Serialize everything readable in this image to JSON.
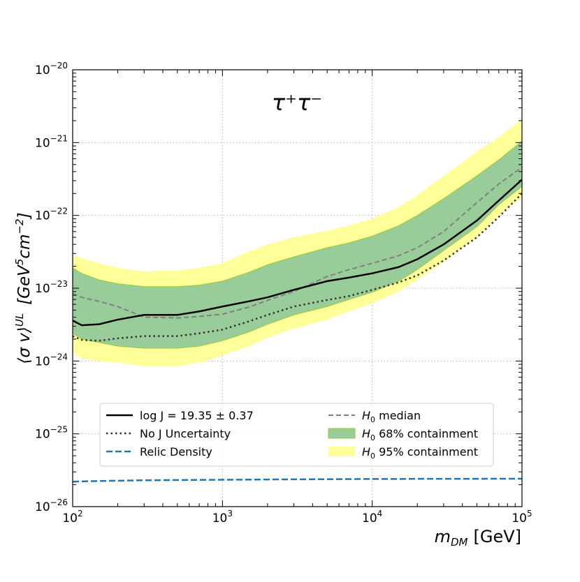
{
  "chart_data": {
    "type": "line",
    "title": "",
    "annotation": "τ⁺τ⁻",
    "xlabel": {
      "symbol": "m",
      "subscript": "DM",
      "unit": "[GeV]"
    },
    "ylabel": {
      "bracket_open": "⟨σ v⟩",
      "superscript": "UL",
      "unit_prefix": "[GeV",
      "unit_sup1": "5",
      "unit_mid": "cm",
      "unit_sup2": "−2",
      "unit_suffix": "]"
    },
    "x_scale": "log",
    "y_scale": "log",
    "xlim": [
      100,
      100000
    ],
    "ylim": [
      1e-26,
      1e-20
    ],
    "grid": true,
    "legend_position": "lower-center",
    "x_ticks": [
      {
        "exp": 2,
        "base": "10",
        "sup": "2"
      },
      {
        "exp": 3,
        "base": "10",
        "sup": "3"
      },
      {
        "exp": 4,
        "base": "10",
        "sup": "4"
      },
      {
        "exp": 5,
        "base": "10",
        "sup": "5"
      }
    ],
    "y_ticks": [
      {
        "exp": -26,
        "base": "10",
        "sup": "−26"
      },
      {
        "exp": -25,
        "base": "10",
        "sup": "−25"
      },
      {
        "exp": -24,
        "base": "10",
        "sup": "−24"
      },
      {
        "exp": -23,
        "base": "10",
        "sup": "−23"
      },
      {
        "exp": -22,
        "base": "10",
        "sup": "−22"
      },
      {
        "exp": -21,
        "base": "10",
        "sup": "−21"
      },
      {
        "exp": -20,
        "base": "10",
        "sup": "−20"
      }
    ],
    "x": [
      100,
      115,
      150,
      200,
      300,
      500,
      700,
      1000,
      1500,
      2000,
      3000,
      5000,
      7000,
      10000,
      15000,
      20000,
      30000,
      50000,
      70000,
      100000
    ],
    "bands": [
      {
        "name": "95% containment",
        "color": "#ffff99",
        "lower": [
          1.3e-24,
          1.1e-24,
          1e-24,
          9.5e-25,
          8.5e-25,
          8.5e-25,
          9.5e-25,
          1.2e-24,
          1.6e-24,
          2.1e-24,
          2.8e-24,
          3.7e-24,
          4.8e-24,
          6.2e-24,
          9e-24,
          1.3e-23,
          2.3e-23,
          5e-23,
          1e-22,
          1.8e-22
        ],
        "upper": [
          2.8e-23,
          2.6e-23,
          2.2e-23,
          1.9e-23,
          1.7e-23,
          1.75e-23,
          1.9e-23,
          2.2e-23,
          3.2e-23,
          4e-23,
          5e-23,
          6.2e-23,
          7.3e-23,
          9e-23,
          1.3e-22,
          1.9e-22,
          3.5e-22,
          7.5e-22,
          1.2e-21,
          2.1e-21
        ]
      },
      {
        "name": "68% containment",
        "color": "#98cc98",
        "lower": [
          2.4e-24,
          2e-24,
          1.8e-24,
          1.6e-24,
          1.5e-24,
          1.5e-24,
          1.6e-24,
          1.9e-24,
          2.5e-24,
          3.2e-24,
          4.3e-24,
          5.6e-24,
          7e-24,
          8.8e-24,
          1.25e-23,
          1.8e-23,
          3.3e-23,
          7e-23,
          1.4e-22,
          2.5e-22
        ],
        "upper": [
          1.9e-23,
          1.6e-23,
          1.3e-23,
          1.15e-23,
          1.05e-23,
          1.05e-23,
          1.1e-23,
          1.25e-23,
          1.65e-23,
          2.1e-23,
          2.7e-23,
          3.6e-23,
          4.2e-23,
          5.2e-23,
          7.2e-23,
          1e-22,
          1.7e-22,
          3.5e-22,
          5.8e-22,
          1.05e-21
        ]
      }
    ],
    "series": [
      {
        "name": "H0 median",
        "style": "dashed",
        "color": "#808080",
        "y": [
          8.5e-24,
          7.5e-24,
          6.6e-24,
          5.6e-24,
          4e-24,
          3.9e-24,
          4.1e-24,
          4.4e-24,
          5.5e-24,
          6.8e-24,
          9e-24,
          1.45e-23,
          1.8e-23,
          2.2e-23,
          2.8e-23,
          3.6e-23,
          6e-23,
          1.5e-22,
          2.7e-22,
          4.6e-22
        ]
      },
      {
        "name": "log J = 19.35 ± 0.37",
        "style": "solid",
        "color": "#000000",
        "y": [
          3.6e-24,
          3.1e-24,
          3.2e-24,
          3.7e-24,
          4.3e-24,
          4.3e-24,
          4.8e-24,
          5.6e-24,
          6.6e-24,
          7.5e-24,
          9.5e-24,
          1.25e-23,
          1.4e-23,
          1.6e-23,
          1.95e-23,
          2.5e-23,
          4e-23,
          8.5e-23,
          1.6e-22,
          3.1e-22
        ]
      },
      {
        "name": "No J Uncertainty",
        "style": "dotted",
        "color": "#333333",
        "y": [
          2.2e-24,
          1.95e-24,
          1.9e-24,
          2.05e-24,
          2.2e-24,
          2.2e-24,
          2.4e-24,
          2.7e-24,
          3.5e-24,
          4.3e-24,
          5.6e-24,
          6.9e-24,
          7.8e-24,
          9.5e-24,
          1.2e-23,
          1.5e-23,
          2.4e-23,
          5e-23,
          9.5e-23,
          2e-22
        ]
      },
      {
        "name": "Relic Density",
        "style": "dashed",
        "color": "#1f77b4",
        "y": [
          2.2e-26,
          2.22e-26,
          2.25e-26,
          2.27e-26,
          2.3e-26,
          2.32e-26,
          2.33e-26,
          2.34e-26,
          2.35e-26,
          2.36e-26,
          2.37e-26,
          2.38e-26,
          2.39e-26,
          2.4e-26,
          2.4e-26,
          2.41e-26,
          2.41e-26,
          2.41e-26,
          2.42e-26,
          2.42e-26
        ]
      }
    ],
    "legend": {
      "left": [
        {
          "key": "solid",
          "label": "log J = 19.35 ± 0.37"
        },
        {
          "key": "dotted",
          "label": "No J Uncertainty"
        },
        {
          "key": "relic",
          "label": "Relic Density"
        }
      ],
      "right": [
        {
          "key": "median",
          "sym": "H",
          "sub": "0",
          "label": " median"
        },
        {
          "key": "band68",
          "sym": "H",
          "sub": "0",
          "label": " 68% containment"
        },
        {
          "key": "band95",
          "sym": "H",
          "sub": "0",
          "label": " 95% containment"
        }
      ]
    }
  }
}
